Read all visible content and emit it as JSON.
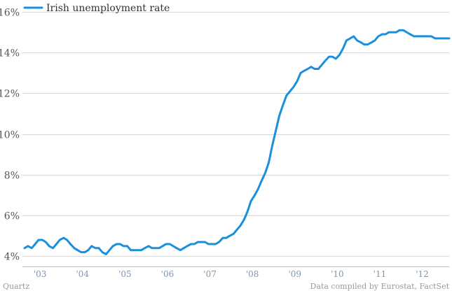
{
  "chart_data": {
    "type": "line",
    "title": "",
    "xlabel": "",
    "ylabel": "",
    "y_unit": "%",
    "ylim": [
      3.5,
      16
    ],
    "y_ticks": [
      4,
      6,
      8,
      10,
      12,
      14,
      16
    ],
    "y_tick_labels": [
      "4%",
      "6%",
      "8%",
      "10%",
      "12%",
      "14%",
      "16%"
    ],
    "xlim": [
      2002.7,
      2012.75
    ],
    "x_ticks": [
      2003,
      2004,
      2005,
      2006,
      2007,
      2008,
      2009,
      2010,
      2011,
      2012
    ],
    "x_tick_labels": [
      "'03",
      "'04",
      "'05",
      "'06",
      "'07",
      "'08",
      "'09",
      "'10",
      "'11",
      "'12"
    ],
    "grid": true,
    "legend_position": "top-left",
    "accent_color": "#1a8fdc",
    "baseline_color": "#e6a3e0",
    "series": [
      {
        "name": "Irish unemployment rate",
        "color": "#1a8fdc",
        "x": [
          2002.75,
          2002.83,
          2002.92,
          2003.0,
          2003.08,
          2003.17,
          2003.25,
          2003.33,
          2003.42,
          2003.5,
          2003.58,
          2003.67,
          2003.75,
          2003.83,
          2003.92,
          2004.0,
          2004.08,
          2004.17,
          2004.25,
          2004.33,
          2004.42,
          2004.5,
          2004.58,
          2004.67,
          2004.75,
          2004.83,
          2004.92,
          2005.0,
          2005.08,
          2005.17,
          2005.25,
          2005.33,
          2005.42,
          2005.5,
          2005.58,
          2005.67,
          2005.75,
          2005.83,
          2005.92,
          2006.0,
          2006.08,
          2006.17,
          2006.25,
          2006.33,
          2006.42,
          2006.5,
          2006.58,
          2006.67,
          2006.75,
          2006.83,
          2006.92,
          2007.0,
          2007.08,
          2007.17,
          2007.25,
          2007.33,
          2007.42,
          2007.5,
          2007.58,
          2007.67,
          2007.75,
          2007.83,
          2007.92,
          2008.0,
          2008.08,
          2008.17,
          2008.25,
          2008.33,
          2008.42,
          2008.5,
          2008.58,
          2008.67,
          2008.75,
          2008.83,
          2008.92,
          2009.0,
          2009.08,
          2009.17,
          2009.25,
          2009.33,
          2009.42,
          2009.5,
          2009.58,
          2009.67,
          2009.75,
          2009.83,
          2009.92,
          2010.0,
          2010.08,
          2010.17,
          2010.25,
          2010.33,
          2010.42,
          2010.5,
          2010.58,
          2010.67,
          2010.75,
          2010.83,
          2010.92,
          2011.0,
          2011.08,
          2011.17,
          2011.25,
          2011.33,
          2011.42,
          2011.5,
          2011.58,
          2011.67,
          2011.75,
          2011.83,
          2011.92,
          2012.0,
          2012.08,
          2012.17,
          2012.25,
          2012.33,
          2012.42,
          2012.5,
          2012.58,
          2012.67,
          2012.75
        ],
        "y": [
          4.4,
          4.5,
          4.4,
          4.6,
          4.8,
          4.8,
          4.7,
          4.5,
          4.4,
          4.6,
          4.8,
          4.9,
          4.8,
          4.6,
          4.4,
          4.3,
          4.2,
          4.2,
          4.3,
          4.5,
          4.4,
          4.4,
          4.2,
          4.1,
          4.3,
          4.5,
          4.6,
          4.6,
          4.5,
          4.5,
          4.3,
          4.3,
          4.3,
          4.3,
          4.4,
          4.5,
          4.4,
          4.4,
          4.4,
          4.5,
          4.6,
          4.6,
          4.5,
          4.4,
          4.3,
          4.4,
          4.5,
          4.6,
          4.6,
          4.7,
          4.7,
          4.7,
          4.6,
          4.6,
          4.6,
          4.7,
          4.9,
          4.9,
          5.0,
          5.1,
          5.3,
          5.5,
          5.8,
          6.2,
          6.7,
          7.0,
          7.3,
          7.7,
          8.1,
          8.6,
          9.4,
          10.2,
          10.9,
          11.4,
          11.9,
          12.1,
          12.3,
          12.6,
          13.0,
          13.1,
          13.2,
          13.3,
          13.2,
          13.2,
          13.4,
          13.6,
          13.8,
          13.8,
          13.7,
          13.9,
          14.2,
          14.6,
          14.7,
          14.8,
          14.6,
          14.5,
          14.4,
          14.4,
          14.5,
          14.6,
          14.8,
          14.9,
          14.9,
          15.0,
          15.0,
          15.0,
          15.1,
          15.1,
          15.0,
          14.9,
          14.8,
          14.8,
          14.8,
          14.8,
          14.8,
          14.8,
          14.7,
          14.7,
          14.7,
          14.7,
          14.7
        ]
      }
    ]
  },
  "footer": {
    "source_left": "Quartz",
    "source_right": "Data compiled by Eurostat, FactSet"
  }
}
